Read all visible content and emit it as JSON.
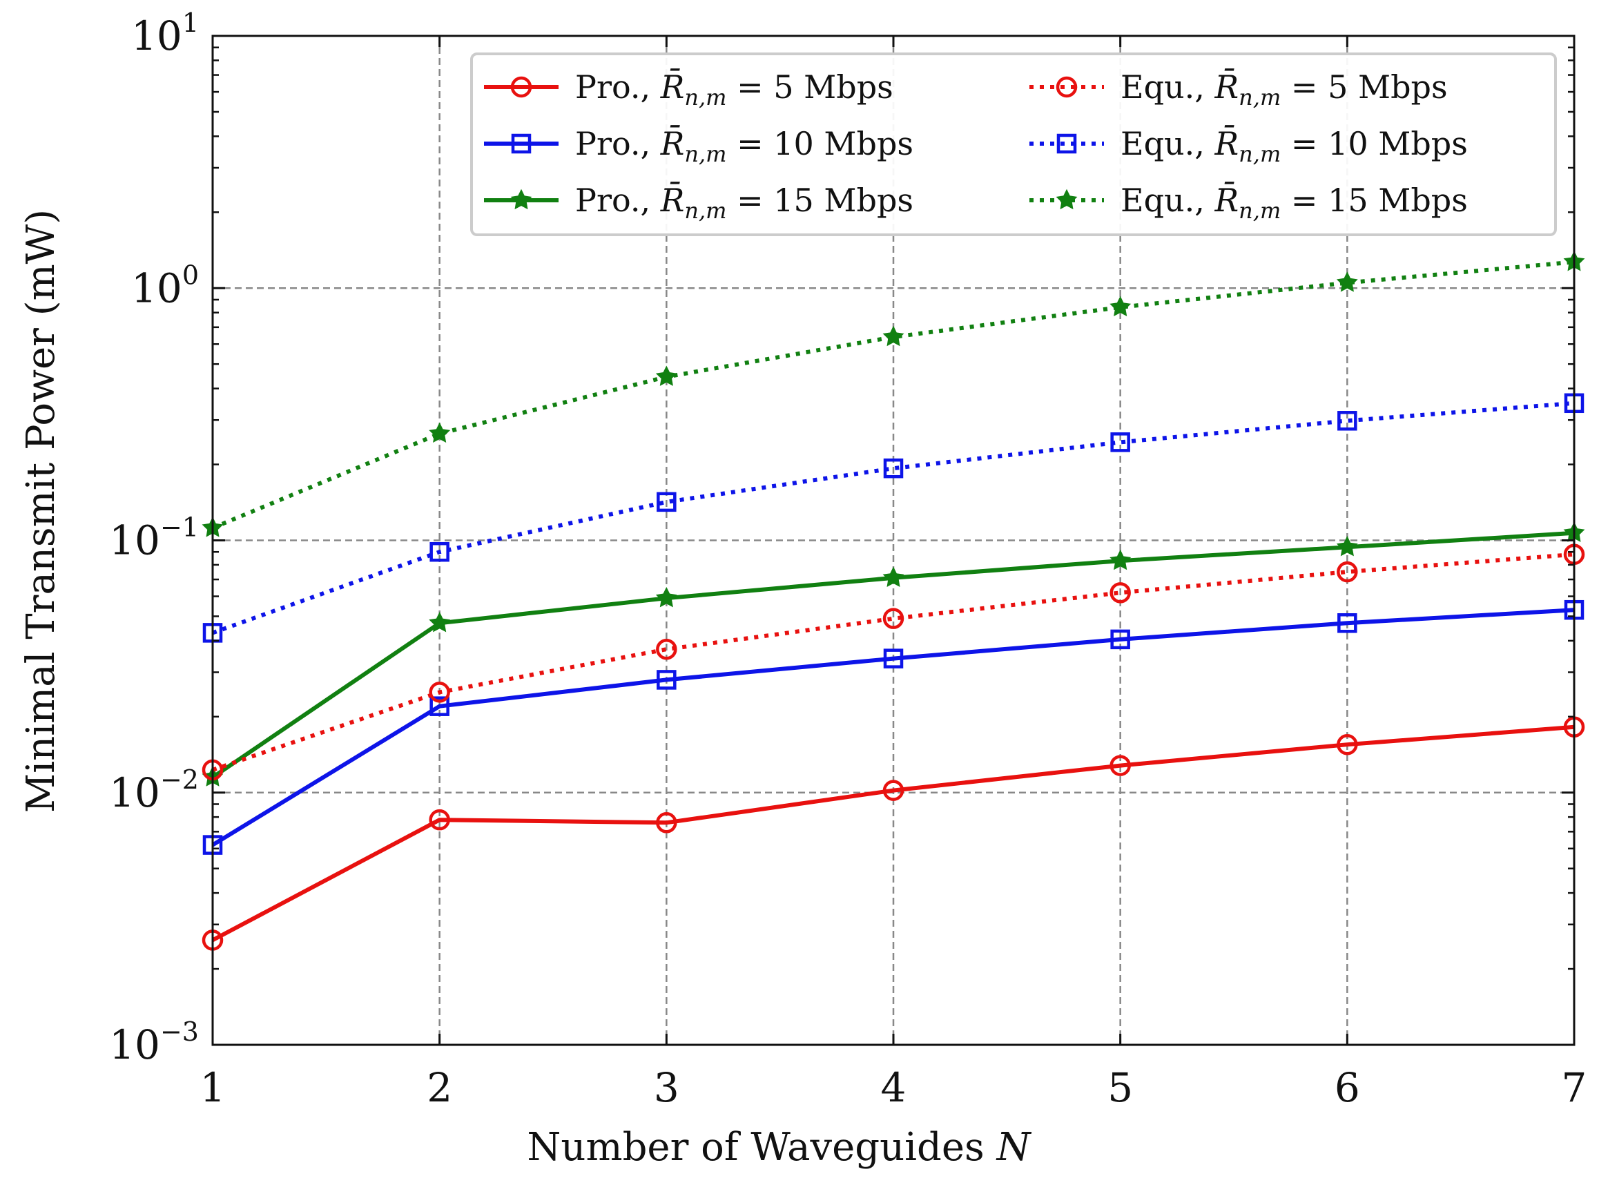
{
  "chart_data": {
    "type": "line",
    "title": "",
    "xlabel": "Number of Waveguides",
    "xlabel_symbol": "N",
    "ylabel": "Minimal Transmit Power (mW)",
    "yscale": "log",
    "xlim": [
      1,
      7
    ],
    "ylim": [
      0.001,
      10
    ],
    "grid": true,
    "legend_position": "top-right",
    "x": [
      1,
      2,
      3,
      4,
      5,
      6,
      7
    ],
    "xticks": [
      "1",
      "2",
      "3",
      "4",
      "5",
      "6",
      "7"
    ],
    "yticks": [
      {
        "value": 0.001,
        "base": "10",
        "exp": "−3"
      },
      {
        "value": 0.01,
        "base": "10",
        "exp": "−2"
      },
      {
        "value": 0.1,
        "base": "10",
        "exp": "−1"
      },
      {
        "value": 1,
        "base": "10",
        "exp": "0"
      },
      {
        "value": 10,
        "base": "10",
        "exp": "1"
      }
    ],
    "series": [
      {
        "label_prefix": "Pro.,",
        "rate": "5 Mbps",
        "color": "#e8110f",
        "dash": "solid",
        "marker": "circle",
        "values": [
          0.0026,
          0.0078,
          0.0076,
          0.0102,
          0.0128,
          0.0155,
          0.0182
        ]
      },
      {
        "label_prefix": "Pro.,",
        "rate": "10 Mbps",
        "color": "#0d14e8",
        "dash": "solid",
        "marker": "square",
        "values": [
          0.0062,
          0.022,
          0.028,
          0.034,
          0.0405,
          0.047,
          0.053
        ]
      },
      {
        "label_prefix": "Pro.,",
        "rate": "15 Mbps",
        "color": "#118011",
        "dash": "solid",
        "marker": "star",
        "values": [
          0.0115,
          0.047,
          0.059,
          0.071,
          0.083,
          0.094,
          0.107
        ]
      },
      {
        "label_prefix": "Equ.,",
        "rate": "5 Mbps",
        "color": "#e8110f",
        "dash": "dotted",
        "marker": "circle",
        "values": [
          0.0123,
          0.025,
          0.037,
          0.049,
          0.062,
          0.075,
          0.088
        ]
      },
      {
        "label_prefix": "Equ.,",
        "rate": "10 Mbps",
        "color": "#0d14e8",
        "dash": "dotted",
        "marker": "square",
        "values": [
          0.043,
          0.09,
          0.142,
          0.193,
          0.245,
          0.298,
          0.35
        ]
      },
      {
        "label_prefix": "Equ.,",
        "rate": "15 Mbps",
        "color": "#118011",
        "dash": "dotted",
        "marker": "star",
        "values": [
          0.112,
          0.265,
          0.445,
          0.64,
          0.84,
          1.05,
          1.27
        ]
      }
    ]
  }
}
